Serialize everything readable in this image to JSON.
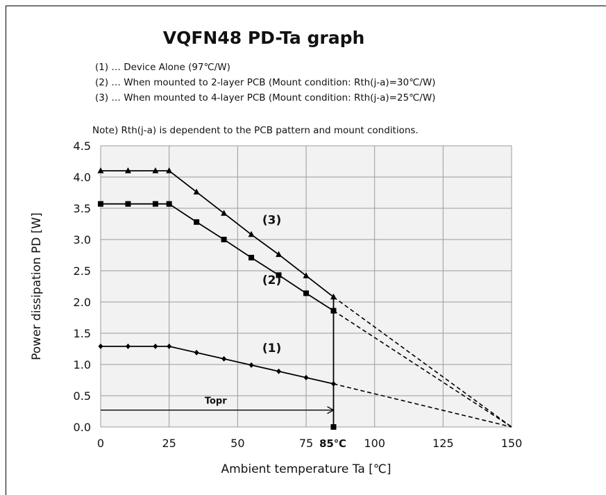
{
  "chart_data": {
    "type": "line",
    "title": "VQFN48  PD-Ta graph",
    "legend_lines": [
      "(1) … Device Alone (97℃/W)",
      "(2) … When mounted to 2-layer PCB (Mount condition: Rth(j-a)=30℃/W)",
      "(3) … When mounted to 4-layer PCB (Mount condition: Rth(j-a)=25℃/W)"
    ],
    "note": "Note) Rth(j-a) is dependent to the PCB pattern and mount conditions.",
    "xlabel": "Ambient temperature Ta [℃]",
    "ylabel": "Power dissipation PD [W]",
    "xlim": [
      0,
      150
    ],
    "ylim": [
      0,
      4.5
    ],
    "x_ticks": [
      "0",
      "25",
      "50",
      "75",
      "100",
      "125",
      "150"
    ],
    "x_tick_values": [
      0,
      25,
      50,
      75,
      100,
      125,
      150
    ],
    "y_ticks": [
      "0.0",
      "0.5",
      "1.0",
      "1.5",
      "2.0",
      "2.5",
      "3.0",
      "3.5",
      "4.0",
      "4.5"
    ],
    "y_tick_values": [
      0,
      0.5,
      1.0,
      1.5,
      2.0,
      2.5,
      3.0,
      3.5,
      4.0,
      4.5
    ],
    "grid": true,
    "series": [
      {
        "name": "(3)",
        "marker": "triangle",
        "x": [
          0,
          10,
          20,
          25,
          35,
          45,
          55,
          65,
          75,
          85
        ],
        "y": [
          4.1,
          4.1,
          4.1,
          4.1,
          3.76,
          3.42,
          3.08,
          2.76,
          2.42,
          2.08
        ],
        "extension": {
          "x": [
            85,
            150
          ],
          "y": [
            2.08,
            0
          ]
        }
      },
      {
        "name": "(2)",
        "marker": "square",
        "x": [
          0,
          10,
          20,
          25,
          35,
          45,
          55,
          65,
          75,
          85
        ],
        "y": [
          3.57,
          3.57,
          3.57,
          3.57,
          3.28,
          3.0,
          2.71,
          2.43,
          2.14,
          1.86
        ],
        "extension": {
          "x": [
            85,
            150
          ],
          "y": [
            1.86,
            0
          ]
        }
      },
      {
        "name": "(1)",
        "marker": "diamond",
        "x": [
          0,
          10,
          20,
          25,
          35,
          45,
          55,
          65,
          75,
          85
        ],
        "y": [
          1.29,
          1.29,
          1.29,
          1.29,
          1.19,
          1.09,
          0.99,
          0.89,
          0.79,
          0.69
        ],
        "extension": {
          "x": [
            85,
            150
          ],
          "y": [
            0.69,
            0
          ]
        }
      }
    ],
    "series_labels": [
      {
        "text": "(3)",
        "x": 59,
        "y": 3.25
      },
      {
        "text": "(2)",
        "x": 59,
        "y": 2.29
      },
      {
        "text": "(1)",
        "x": 59,
        "y": 1.2
      }
    ],
    "topr": {
      "label": "Topr",
      "x_start": 0,
      "x_end": 85,
      "y": 0.27
    },
    "operating_limit": {
      "x": 85,
      "label": "85℃",
      "y_top": 2.08
    }
  }
}
